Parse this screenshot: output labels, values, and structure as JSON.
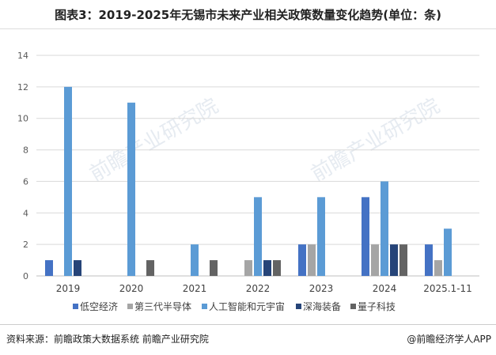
{
  "title": "图表3：2019-2025年无锡市未来产业相关政策数量变化趋势(单位：条)",
  "source": "资料来源：前瞻政策大数据系统 前瞻产业研究院",
  "brand": "@前瞻经济学人APP",
  "watermark": "前瞻产业研究院",
  "chart_data": {
    "type": "bar",
    "title": "图表3：2019-2025年无锡市未来产业相关政策数量变化趋势(单位：条)",
    "categories": [
      "2019",
      "2020",
      "2021",
      "2022",
      "2023",
      "2024",
      "2025.1-11"
    ],
    "series": [
      {
        "name": "低空经济",
        "color": "#4472c4",
        "values": [
          1,
          0,
          0,
          0,
          2,
          5,
          2
        ]
      },
      {
        "name": "第三代半导体",
        "color": "#a5a5a5",
        "values": [
          0,
          0,
          0,
          1,
          2,
          2,
          1
        ]
      },
      {
        "name": "人工智能和元宇宙",
        "color": "#5b9bd5",
        "values": [
          12,
          11,
          2,
          5,
          5,
          6,
          3
        ]
      },
      {
        "name": "深海装备",
        "color": "#264478",
        "values": [
          1,
          0,
          0,
          1,
          0,
          2,
          0
        ]
      },
      {
        "name": "量子科技",
        "color": "#636363",
        "values": [
          0,
          1,
          1,
          1,
          0,
          2,
          0
        ]
      }
    ],
    "ylim": [
      0,
      14
    ],
    "yticks": [
      0,
      2,
      4,
      6,
      8,
      10,
      12,
      14
    ],
    "grid": true,
    "legend": "bottom"
  }
}
